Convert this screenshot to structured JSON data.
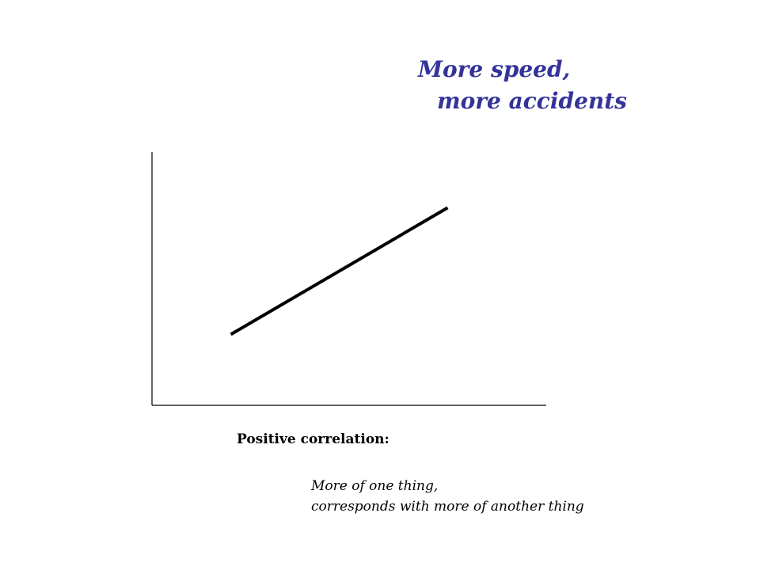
{
  "headline": {
    "line_1": "More speed,",
    "line_2": "more accidents",
    "color": "#333399"
  },
  "chart_data": {
    "type": "line",
    "title": "",
    "xlabel": "",
    "ylabel": "",
    "series": [
      {
        "x": [
          0.2,
          0.75
        ],
        "values": [
          0.28,
          0.78
        ]
      }
    ],
    "xlim": [
      0,
      1
    ],
    "ylim": [
      0,
      1
    ],
    "grid": false,
    "axis_color": "#000000",
    "line_color": "#000000"
  },
  "caption": {
    "label": "Positive correlation:",
    "description_line_1": "More of one thing,",
    "description_line_2": "corresponds with more of another thing"
  }
}
